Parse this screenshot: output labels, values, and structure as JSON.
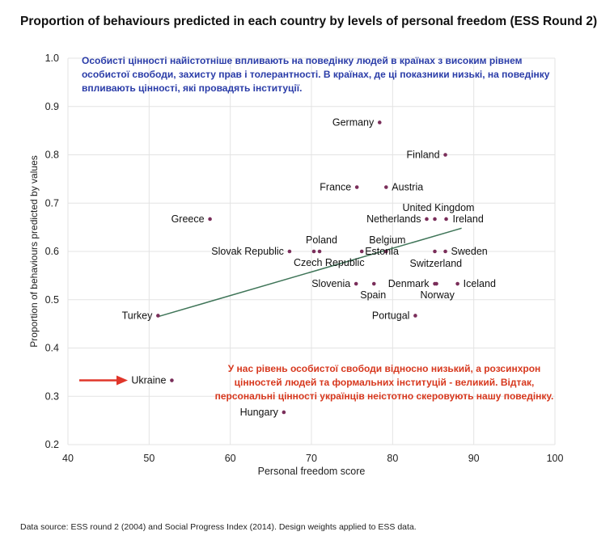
{
  "chart_data": {
    "type": "scatter",
    "title": "Proportion of behaviours predicted in each country by levels of personal freedom (ESS Round 2)",
    "xlabel": "Personal freedom score",
    "ylabel": "Proportion of behaviours predicted by values",
    "xlim": [
      40,
      100
    ],
    "ylim": [
      0.2,
      1.0
    ],
    "xticks": [
      "40",
      "50",
      "60",
      "70",
      "80",
      "90",
      "100"
    ],
    "yticks": [
      "0.2",
      "0.3",
      "0.4",
      "0.5",
      "0.6",
      "0.7",
      "0.8",
      "0.9",
      "1.0"
    ],
    "grid": true,
    "points": [
      {
        "name": "Germany",
        "x": 78.4,
        "y": 0.867
      },
      {
        "name": "Finland",
        "x": 86.5,
        "y": 0.8
      },
      {
        "name": "France",
        "x": 75.6,
        "y": 0.733
      },
      {
        "name": "Austria",
        "x": 79.2,
        "y": 0.733
      },
      {
        "name": "United Kingdom",
        "x": 85.2,
        "y": 0.667
      },
      {
        "name": "Netherlands",
        "x": 84.2,
        "y": 0.667
      },
      {
        "name": "Ireland",
        "x": 86.6,
        "y": 0.667
      },
      {
        "name": "Greece",
        "x": 57.5,
        "y": 0.667
      },
      {
        "name": "Poland",
        "x": 70.3,
        "y": 0.6
      },
      {
        "name": "Belgium",
        "x": 79.2,
        "y": 0.6
      },
      {
        "name": "Slovak Republic",
        "x": 67.3,
        "y": 0.6
      },
      {
        "name": "Estonia",
        "x": 76.2,
        "y": 0.6
      },
      {
        "name": "Czech Republic",
        "x": 71.0,
        "y": 0.6
      },
      {
        "name": "Sweden",
        "x": 86.5,
        "y": 0.6
      },
      {
        "name": "Switzerland",
        "x": 85.2,
        "y": 0.6
      },
      {
        "name": "Slovenia",
        "x": 75.5,
        "y": 0.533
      },
      {
        "name": "Spain",
        "x": 77.7,
        "y": 0.533
      },
      {
        "name": "Denmark",
        "x": 85.2,
        "y": 0.533
      },
      {
        "name": "Norway",
        "x": 85.4,
        "y": 0.533
      },
      {
        "name": "Iceland",
        "x": 88.0,
        "y": 0.533
      },
      {
        "name": "Portugal",
        "x": 82.8,
        "y": 0.467
      },
      {
        "name": "Turkey",
        "x": 51.1,
        "y": 0.467
      },
      {
        "name": "Ukraine",
        "x": 52.8,
        "y": 0.333
      },
      {
        "name": "Hungary",
        "x": 66.6,
        "y": 0.267
      }
    ],
    "trendline": {
      "x": [
        51.1,
        88.5
      ],
      "y": [
        0.465,
        0.648
      ]
    },
    "colors": {
      "point": "#7a2e5a",
      "trendline": "#3f7558",
      "grid": "#e3e3e3",
      "annotation_blue": "#2a3ca8",
      "annotation_red": "#d7381e",
      "arrow": "#e0362a"
    }
  },
  "annotations": {
    "blue": "Особисті цінності найістотніше впливають на поведінку людей в країнах з високим рівнем особистої свободи, захисту прав і толерантності. В країнах, де ці показники низькі, на поведінку впливають цінності, які провадять інституції.",
    "red": "У нас рівень особистої свободи відносно низький, а розсинхрон цінностей людей та формальних інституцій - великий. Відтак, персональні цінності українців неістотно скеровують нашу поведінку."
  },
  "source": "Data source: ESS round 2 (2004) and Social Progress Index (2014). Design weights applied to ESS data."
}
